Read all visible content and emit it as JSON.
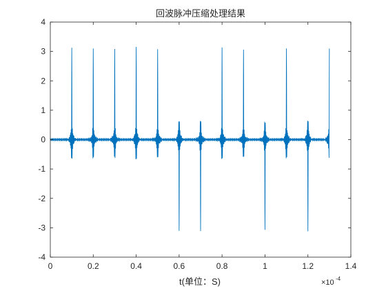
{
  "chart_data": {
    "type": "line",
    "title": "回波脉冲压缩处理结果",
    "xlabel": "t(单位：S)",
    "ylabel": "",
    "x_exponent_label": "×10",
    "x_exponent_power": "-4",
    "xlim": [
      0,
      1.4
    ],
    "ylim": [
      -4,
      4
    ],
    "xticks": [
      "0",
      "0.2",
      "0.4",
      "0.6",
      "0.8",
      "1",
      "1.2",
      "1.4"
    ],
    "yticks": [
      "-4",
      "-3",
      "-2",
      "-1",
      "0",
      "1",
      "2",
      "3",
      "4"
    ],
    "grid": false,
    "x_scale_note": "x values in units of 1e-4 s",
    "series": [
      {
        "color": "#0072BD",
        "peaks": [
          {
            "x": 0.1,
            "y": 3.1
          },
          {
            "x": 0.2,
            "y": 3.1
          },
          {
            "x": 0.3,
            "y": 3.1
          },
          {
            "x": 0.4,
            "y": 3.1
          },
          {
            "x": 0.5,
            "y": 3.1
          },
          {
            "x": 0.6,
            "y": -3.1
          },
          {
            "x": 0.7,
            "y": -3.1
          },
          {
            "x": 0.8,
            "y": 3.1
          },
          {
            "x": 0.9,
            "y": 3.1
          },
          {
            "x": 1.0,
            "y": -3.1
          },
          {
            "x": 1.1,
            "y": 3.1
          },
          {
            "x": 1.2,
            "y": -3.1
          },
          {
            "x": 1.3,
            "y": 3.1
          }
        ]
      }
    ]
  }
}
